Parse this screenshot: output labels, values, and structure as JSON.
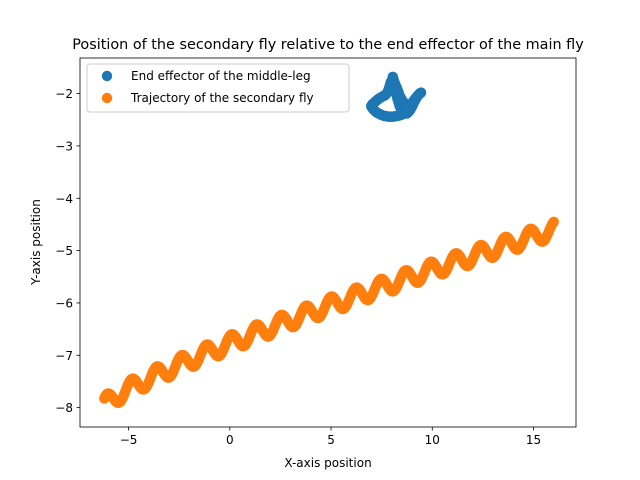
{
  "chart_data": {
    "type": "scatter",
    "title": "Position of the secondary fly relative to the end effector of the main fly",
    "xlabel": "X-axis position",
    "ylabel": "Y-axis position",
    "xlim": [
      -7.4,
      17.1
    ],
    "ylim": [
      -8.37,
      -1.32
    ],
    "xticks": [
      -5,
      0,
      5,
      10,
      15
    ],
    "yticks": [
      -8,
      -7,
      -6,
      -5,
      -4,
      -3,
      -2
    ],
    "xtick_labels": [
      "−5",
      "0",
      "5",
      "10",
      "15"
    ],
    "ytick_labels": [
      "−8",
      "−7",
      "−6",
      "−5",
      "−4",
      "−3",
      "−2"
    ],
    "grid": false,
    "legend_position": "upper-left",
    "series": [
      {
        "name": "End effector of the middle-leg",
        "color": "#1f77b4",
        "points": [
          [
            8.05,
            -1.68
          ],
          [
            8.1,
            -1.76
          ],
          [
            8.15,
            -1.85
          ],
          [
            8.2,
            -1.95
          ],
          [
            8.25,
            -2.05
          ],
          [
            8.32,
            -2.15
          ],
          [
            8.4,
            -2.25
          ],
          [
            8.5,
            -2.33
          ],
          [
            8.62,
            -2.38
          ],
          [
            8.75,
            -2.38
          ],
          [
            8.88,
            -2.33
          ],
          [
            9.0,
            -2.25
          ],
          [
            9.12,
            -2.15
          ],
          [
            9.25,
            -2.06
          ],
          [
            9.38,
            -2.0
          ],
          [
            9.45,
            -1.98
          ],
          [
            9.3,
            -2.03
          ],
          [
            9.15,
            -2.1
          ],
          [
            9.0,
            -2.18
          ],
          [
            8.85,
            -2.24
          ],
          [
            8.7,
            -2.22
          ],
          [
            8.55,
            -2.15
          ],
          [
            8.4,
            -2.05
          ],
          [
            8.28,
            -1.92
          ],
          [
            8.15,
            -1.8
          ],
          [
            8.05,
            -1.72
          ],
          [
            7.95,
            -1.78
          ],
          [
            7.88,
            -1.88
          ],
          [
            7.8,
            -1.97
          ],
          [
            7.68,
            -2.03
          ],
          [
            7.52,
            -2.06
          ],
          [
            7.35,
            -2.1
          ],
          [
            7.2,
            -2.15
          ],
          [
            7.05,
            -2.2
          ],
          [
            6.98,
            -2.24
          ],
          [
            7.08,
            -2.3
          ],
          [
            7.25,
            -2.36
          ],
          [
            7.45,
            -2.4
          ],
          [
            7.65,
            -2.43
          ],
          [
            7.85,
            -2.44
          ],
          [
            8.05,
            -2.44
          ],
          [
            8.25,
            -2.43
          ],
          [
            8.45,
            -2.41
          ],
          [
            8.65,
            -2.37
          ],
          [
            8.82,
            -2.32
          ]
        ]
      },
      {
        "name": "Trajectory of the secondary fly",
        "color": "#ff7f0e",
        "trend": {
          "x_start": -6.2,
          "x_end": 16.0,
          "y_start": -7.95,
          "y_end": -4.6,
          "amplitude": 0.16,
          "wavelength": 1.23,
          "n": 520
        }
      }
    ]
  }
}
